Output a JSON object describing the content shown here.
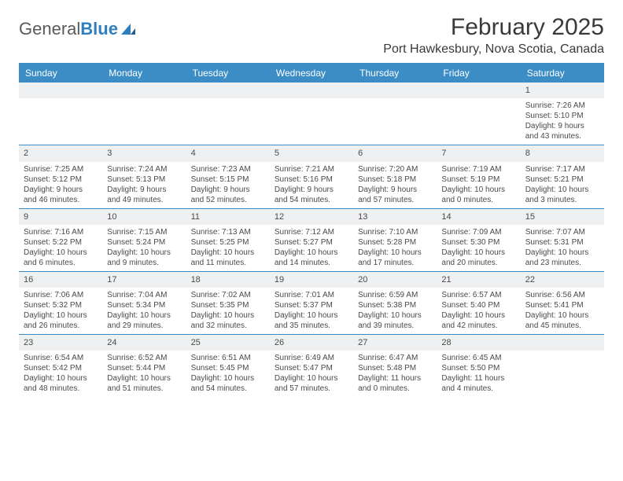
{
  "logo": {
    "word1": "General",
    "word2": "Blue"
  },
  "title": "February 2025",
  "location": "Port Hawkesbury, Nova Scotia, Canada",
  "colors": {
    "header_bg": "#3c8dc6",
    "header_text": "#ffffff",
    "daynum_bg": "#eef0f2",
    "text": "#3a3a3a",
    "cell_text": "#4a4a4a",
    "rule": "#3c8dc6"
  },
  "typography": {
    "title_fontsize": 30,
    "location_fontsize": 16,
    "dayhead_fontsize": 12,
    "cell_fontsize": 10
  },
  "dayNames": [
    "Sunday",
    "Monday",
    "Tuesday",
    "Wednesday",
    "Thursday",
    "Friday",
    "Saturday"
  ],
  "weeks": [
    [
      null,
      null,
      null,
      null,
      null,
      null,
      {
        "n": "1",
        "sunrise": "Sunrise: 7:26 AM",
        "sunset": "Sunset: 5:10 PM",
        "day": "Daylight: 9 hours and 43 minutes."
      }
    ],
    [
      {
        "n": "2",
        "sunrise": "Sunrise: 7:25 AM",
        "sunset": "Sunset: 5:12 PM",
        "day": "Daylight: 9 hours and 46 minutes."
      },
      {
        "n": "3",
        "sunrise": "Sunrise: 7:24 AM",
        "sunset": "Sunset: 5:13 PM",
        "day": "Daylight: 9 hours and 49 minutes."
      },
      {
        "n": "4",
        "sunrise": "Sunrise: 7:23 AM",
        "sunset": "Sunset: 5:15 PM",
        "day": "Daylight: 9 hours and 52 minutes."
      },
      {
        "n": "5",
        "sunrise": "Sunrise: 7:21 AM",
        "sunset": "Sunset: 5:16 PM",
        "day": "Daylight: 9 hours and 54 minutes."
      },
      {
        "n": "6",
        "sunrise": "Sunrise: 7:20 AM",
        "sunset": "Sunset: 5:18 PM",
        "day": "Daylight: 9 hours and 57 minutes."
      },
      {
        "n": "7",
        "sunrise": "Sunrise: 7:19 AM",
        "sunset": "Sunset: 5:19 PM",
        "day": "Daylight: 10 hours and 0 minutes."
      },
      {
        "n": "8",
        "sunrise": "Sunrise: 7:17 AM",
        "sunset": "Sunset: 5:21 PM",
        "day": "Daylight: 10 hours and 3 minutes."
      }
    ],
    [
      {
        "n": "9",
        "sunrise": "Sunrise: 7:16 AM",
        "sunset": "Sunset: 5:22 PM",
        "day": "Daylight: 10 hours and 6 minutes."
      },
      {
        "n": "10",
        "sunrise": "Sunrise: 7:15 AM",
        "sunset": "Sunset: 5:24 PM",
        "day": "Daylight: 10 hours and 9 minutes."
      },
      {
        "n": "11",
        "sunrise": "Sunrise: 7:13 AM",
        "sunset": "Sunset: 5:25 PM",
        "day": "Daylight: 10 hours and 11 minutes."
      },
      {
        "n": "12",
        "sunrise": "Sunrise: 7:12 AM",
        "sunset": "Sunset: 5:27 PM",
        "day": "Daylight: 10 hours and 14 minutes."
      },
      {
        "n": "13",
        "sunrise": "Sunrise: 7:10 AM",
        "sunset": "Sunset: 5:28 PM",
        "day": "Daylight: 10 hours and 17 minutes."
      },
      {
        "n": "14",
        "sunrise": "Sunrise: 7:09 AM",
        "sunset": "Sunset: 5:30 PM",
        "day": "Daylight: 10 hours and 20 minutes."
      },
      {
        "n": "15",
        "sunrise": "Sunrise: 7:07 AM",
        "sunset": "Sunset: 5:31 PM",
        "day": "Daylight: 10 hours and 23 minutes."
      }
    ],
    [
      {
        "n": "16",
        "sunrise": "Sunrise: 7:06 AM",
        "sunset": "Sunset: 5:32 PM",
        "day": "Daylight: 10 hours and 26 minutes."
      },
      {
        "n": "17",
        "sunrise": "Sunrise: 7:04 AM",
        "sunset": "Sunset: 5:34 PM",
        "day": "Daylight: 10 hours and 29 minutes."
      },
      {
        "n": "18",
        "sunrise": "Sunrise: 7:02 AM",
        "sunset": "Sunset: 5:35 PM",
        "day": "Daylight: 10 hours and 32 minutes."
      },
      {
        "n": "19",
        "sunrise": "Sunrise: 7:01 AM",
        "sunset": "Sunset: 5:37 PM",
        "day": "Daylight: 10 hours and 35 minutes."
      },
      {
        "n": "20",
        "sunrise": "Sunrise: 6:59 AM",
        "sunset": "Sunset: 5:38 PM",
        "day": "Daylight: 10 hours and 39 minutes."
      },
      {
        "n": "21",
        "sunrise": "Sunrise: 6:57 AM",
        "sunset": "Sunset: 5:40 PM",
        "day": "Daylight: 10 hours and 42 minutes."
      },
      {
        "n": "22",
        "sunrise": "Sunrise: 6:56 AM",
        "sunset": "Sunset: 5:41 PM",
        "day": "Daylight: 10 hours and 45 minutes."
      }
    ],
    [
      {
        "n": "23",
        "sunrise": "Sunrise: 6:54 AM",
        "sunset": "Sunset: 5:42 PM",
        "day": "Daylight: 10 hours and 48 minutes."
      },
      {
        "n": "24",
        "sunrise": "Sunrise: 6:52 AM",
        "sunset": "Sunset: 5:44 PM",
        "day": "Daylight: 10 hours and 51 minutes."
      },
      {
        "n": "25",
        "sunrise": "Sunrise: 6:51 AM",
        "sunset": "Sunset: 5:45 PM",
        "day": "Daylight: 10 hours and 54 minutes."
      },
      {
        "n": "26",
        "sunrise": "Sunrise: 6:49 AM",
        "sunset": "Sunset: 5:47 PM",
        "day": "Daylight: 10 hours and 57 minutes."
      },
      {
        "n": "27",
        "sunrise": "Sunrise: 6:47 AM",
        "sunset": "Sunset: 5:48 PM",
        "day": "Daylight: 11 hours and 0 minutes."
      },
      {
        "n": "28",
        "sunrise": "Sunrise: 6:45 AM",
        "sunset": "Sunset: 5:50 PM",
        "day": "Daylight: 11 hours and 4 minutes."
      },
      null
    ]
  ]
}
